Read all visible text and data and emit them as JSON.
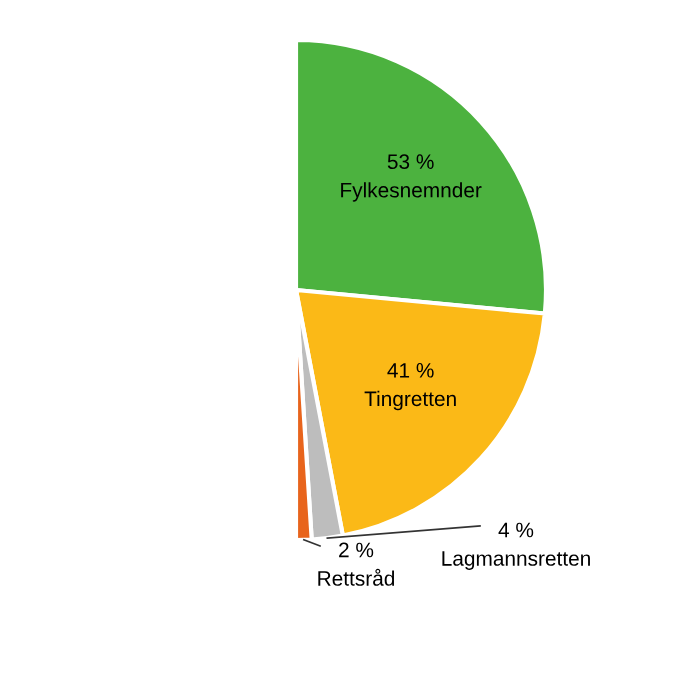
{
  "chart_data": {
    "type": "pie",
    "categories": [
      "Fylkesnemnder",
      "Tingretten",
      "Lagmannsretten",
      "Rettsråd"
    ],
    "values": [
      53,
      41,
      4,
      2
    ],
    "colors": [
      "#4cb23f",
      "#fbb917",
      "#bdbdbd",
      "#e8641c"
    ],
    "value_labels": [
      "53 %",
      "41 %",
      "4 %",
      "2 %"
    ]
  }
}
